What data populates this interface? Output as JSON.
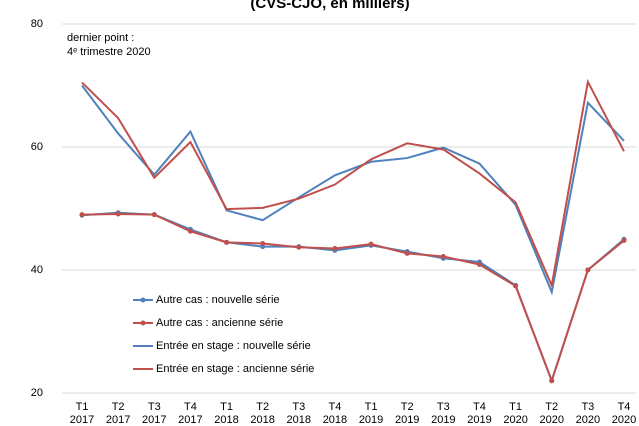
{
  "chart_data": {
    "type": "line",
    "title": "(CVS-CJO, en milliers)",
    "annotation": [
      "dernier point :",
      "4ᵉ trimestre 2020"
    ],
    "categories": [
      "T1 2017",
      "T2 2017",
      "T3 2017",
      "T4 2017",
      "T1 2018",
      "T2 2018",
      "T3 2018",
      "T4 2018",
      "T1 2019",
      "T2 2019",
      "T3 2019",
      "T4 2019",
      "T1 2020",
      "T2 2020",
      "T3 2020",
      "T4 2020"
    ],
    "series": [
      {
        "name": "Autre cas : nouvelle série",
        "color": "#4f81bd",
        "marker": true,
        "values": [
          48.9,
          49.3,
          49.0,
          46.6,
          44.5,
          43.8,
          43.8,
          43.2,
          44.0,
          43.0,
          41.9,
          41.3,
          37.5,
          22.0,
          40.0,
          45.0
        ]
      },
      {
        "name": "Autre cas : ancienne série",
        "color": "#c0504d",
        "marker": true,
        "values": [
          49.0,
          49.1,
          49.0,
          46.3,
          44.5,
          44.3,
          43.7,
          43.5,
          44.2,
          42.7,
          42.2,
          40.9,
          37.4,
          22.0,
          40.0,
          44.8
        ]
      },
      {
        "name": "Entrée en stage : nouvelle série",
        "color": "#4f81bd",
        "marker": false,
        "values": [
          70.0,
          62.2,
          55.5,
          62.5,
          49.7,
          48.1,
          51.8,
          55.4,
          57.6,
          58.2,
          59.9,
          57.3,
          50.6,
          36.4,
          67.2,
          61.0
        ]
      },
      {
        "name": "Entrée en stage : ancienne série",
        "color": "#c0504d",
        "marker": false,
        "values": [
          70.5,
          64.7,
          55.0,
          60.8,
          49.9,
          50.1,
          51.6,
          53.9,
          58.0,
          60.6,
          59.6,
          55.7,
          51.0,
          37.5,
          70.6,
          59.3
        ]
      }
    ],
    "ylim": [
      20,
      80
    ],
    "yticks": [
      20,
      40,
      60,
      80
    ],
    "grid": true
  }
}
